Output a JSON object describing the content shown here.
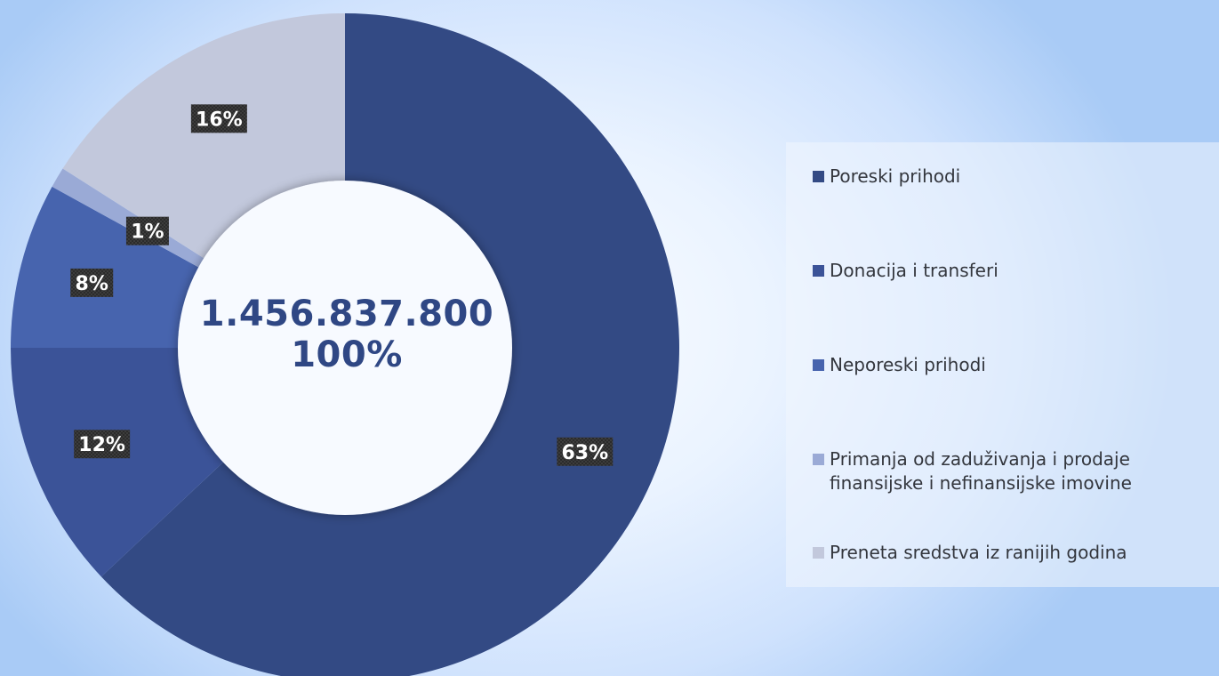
{
  "chart_data": {
    "type": "pie",
    "donut": true,
    "center_label": {
      "total": "1.456.837.800",
      "percent": "100%"
    },
    "slices": [
      {
        "label": "Poreski prihodi",
        "value": 63,
        "data_label": "63%",
        "color": "#334a84"
      },
      {
        "label": "Donacija i transferi",
        "value": 12,
        "data_label": "12%",
        "color": "#3b5398"
      },
      {
        "label": "Neporeski prihodi",
        "value": 8,
        "data_label": "8%",
        "color": "#4764ae"
      },
      {
        "label": "Primanja od zaduživanja i prodaje\nfinansijske i nefinansijske imovine",
        "value": 1,
        "data_label": "1%",
        "color": "#9aaad6"
      },
      {
        "label": "Preneta sredstva iz ranijih godina",
        "value": 16,
        "data_label": "16%",
        "color": "#c2c8dc"
      }
    ],
    "legend_position": "right"
  }
}
